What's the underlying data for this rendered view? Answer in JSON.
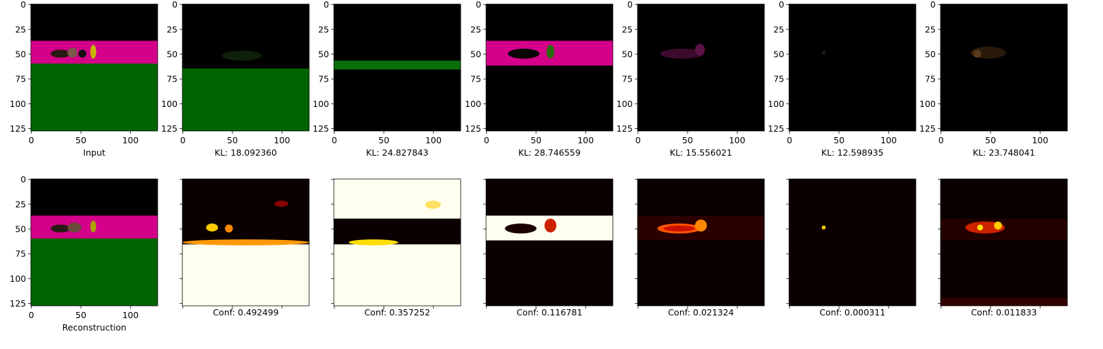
{
  "figure": {
    "panels": [
      {
        "row": "top",
        "kind": "rgb",
        "caption": "Input",
        "layers": [
          {
            "color": "#000000",
            "y0": 0,
            "y1": 128
          },
          {
            "color": "#d4008a",
            "y0": 37,
            "y1": 63
          },
          {
            "color": "#006400",
            "y0": 60,
            "y1": 128
          }
        ],
        "blobs": [
          {
            "cx": 30,
            "cy": 50,
            "rx": 10,
            "ry": 4,
            "color": "#2a1a14"
          },
          {
            "cx": 42,
            "cy": 49,
            "rx": 5,
            "ry": 5,
            "color": "#7a5a4a"
          },
          {
            "cx": 52,
            "cy": 50,
            "rx": 4,
            "ry": 4,
            "color": "#111111"
          },
          {
            "cx": 63,
            "cy": 48,
            "rx": 3,
            "ry": 7,
            "color": "#c8b400"
          }
        ]
      },
      {
        "row": "top",
        "kind": "rgb",
        "caption": "KL: 18.092360",
        "layers": [
          {
            "color": "#000000",
            "y0": 0,
            "y1": 128
          },
          {
            "color": "#006400",
            "y0": 65,
            "y1": 128
          }
        ],
        "blobs": [
          {
            "cx": 60,
            "cy": 52,
            "rx": 20,
            "ry": 5,
            "color": "#0f200a"
          }
        ]
      },
      {
        "row": "top",
        "kind": "rgb",
        "caption": "KL: 24.827843",
        "layers": [
          {
            "color": "#000000",
            "y0": 0,
            "y1": 128
          },
          {
            "color": "#0a6e0a",
            "y0": 57,
            "y1": 66
          }
        ],
        "blobs": []
      },
      {
        "row": "top",
        "kind": "rgb",
        "caption": "KL: 28.746559",
        "layers": [
          {
            "color": "#000000",
            "y0": 0,
            "y1": 128
          },
          {
            "color": "#d4008a",
            "y0": 37,
            "y1": 62
          }
        ],
        "blobs": [
          {
            "cx": 38,
            "cy": 50,
            "rx": 16,
            "ry": 5,
            "color": "#050505"
          },
          {
            "cx": 65,
            "cy": 48,
            "rx": 4,
            "ry": 7,
            "color": "#2b6a10"
          }
        ]
      },
      {
        "row": "top",
        "kind": "rgb",
        "caption": "KL: 15.556021",
        "layers": [
          {
            "color": "#000000",
            "y0": 0,
            "y1": 128
          }
        ],
        "blobs": [
          {
            "cx": 45,
            "cy": 50,
            "rx": 22,
            "ry": 5,
            "color": "#3b0a2d"
          },
          {
            "cx": 63,
            "cy": 46,
            "rx": 5,
            "ry": 6,
            "color": "#5a1247"
          }
        ]
      },
      {
        "row": "top",
        "kind": "rgb",
        "caption": "KL: 12.598935",
        "layers": [
          {
            "color": "#000000",
            "y0": 0,
            "y1": 128
          }
        ],
        "blobs": [
          {
            "cx": 35,
            "cy": 49,
            "rx": 2,
            "ry": 2,
            "color": "#221818"
          }
        ]
      },
      {
        "row": "top",
        "kind": "rgb",
        "caption": "KL: 23.748041",
        "layers": [
          {
            "color": "#000000",
            "y0": 0,
            "y1": 128
          }
        ],
        "blobs": [
          {
            "cx": 48,
            "cy": 49,
            "rx": 18,
            "ry": 6,
            "color": "#2a1a0a"
          },
          {
            "cx": 37,
            "cy": 50,
            "rx": 4,
            "ry": 4,
            "color": "#5a3a1a"
          }
        ]
      },
      {
        "row": "bottom",
        "kind": "rgb",
        "caption": "Reconstruction",
        "layers": [
          {
            "color": "#000000",
            "y0": 0,
            "y1": 128
          },
          {
            "color": "#d4008a",
            "y0": 37,
            "y1": 62
          },
          {
            "color": "#006400",
            "y0": 60,
            "y1": 128
          }
        ],
        "blobs": [
          {
            "cx": 30,
            "cy": 50,
            "rx": 10,
            "ry": 4,
            "color": "#2a1a14"
          },
          {
            "cx": 44,
            "cy": 49,
            "rx": 7,
            "ry": 5,
            "color": "#6a4a3a"
          },
          {
            "cx": 63,
            "cy": 48,
            "rx": 3,
            "ry": 6,
            "color": "#b0a000"
          }
        ]
      },
      {
        "row": "bottom",
        "kind": "heat",
        "caption": "Conf: 0.492499",
        "layers": [
          {
            "color": "#0b0000",
            "y0": 0,
            "y1": 128
          },
          {
            "color": "#fffff0",
            "y0": 66,
            "y1": 128
          }
        ],
        "blobs": [
          {
            "cx": 30,
            "cy": 49,
            "rx": 6,
            "ry": 4,
            "color": "#ffcc00"
          },
          {
            "cx": 47,
            "cy": 50,
            "rx": 4,
            "ry": 4,
            "color": "#ff8800"
          },
          {
            "cx": 100,
            "cy": 25,
            "rx": 7,
            "ry": 3,
            "color": "#8a0000"
          },
          {
            "cx": 64,
            "cy": 64,
            "rx": 64,
            "ry": 3,
            "color": "#ff9900"
          }
        ]
      },
      {
        "row": "bottom",
        "kind": "heat",
        "caption": "Conf: 0.357252",
        "layers": [
          {
            "color": "#0b0000",
            "y0": 0,
            "y1": 128
          },
          {
            "color": "#fffff0",
            "y0": 0,
            "y1": 40
          },
          {
            "color": "#fffff0",
            "y0": 66,
            "y1": 128
          }
        ],
        "blobs": [
          {
            "cx": 100,
            "cy": 26,
            "rx": 8,
            "ry": 4,
            "color": "#ffe060"
          },
          {
            "cx": 40,
            "cy": 64,
            "rx": 25,
            "ry": 3,
            "color": "#ffdd00"
          }
        ]
      },
      {
        "row": "bottom",
        "kind": "heat",
        "caption": "Conf: 0.116781",
        "layers": [
          {
            "color": "#0b0000",
            "y0": 0,
            "y1": 128
          },
          {
            "color": "#fffff0",
            "y0": 37,
            "y1": 62
          }
        ],
        "blobs": [
          {
            "cx": 35,
            "cy": 50,
            "rx": 16,
            "ry": 5,
            "color": "#1a0000"
          },
          {
            "cx": 65,
            "cy": 47,
            "rx": 6,
            "ry": 7,
            "color": "#cc2200"
          }
        ]
      },
      {
        "row": "bottom",
        "kind": "heat",
        "caption": "Conf: 0.021324",
        "layers": [
          {
            "color": "#0b0000",
            "y0": 0,
            "y1": 128
          },
          {
            "color": "#2a0000",
            "y0": 37,
            "y1": 62
          }
        ],
        "blobs": [
          {
            "cx": 42,
            "cy": 50,
            "rx": 22,
            "ry": 5,
            "color": "#ff5500"
          },
          {
            "cx": 64,
            "cy": 47,
            "rx": 6,
            "ry": 6,
            "color": "#ff8800"
          },
          {
            "cx": 42,
            "cy": 50,
            "rx": 16,
            "ry": 3,
            "color": "#cc1100"
          }
        ]
      },
      {
        "row": "bottom",
        "kind": "heat",
        "caption": "Conf: 0.000311",
        "layers": [
          {
            "color": "#0b0000",
            "y0": 0,
            "y1": 128
          }
        ],
        "blobs": [
          {
            "cx": 35,
            "cy": 49,
            "rx": 2,
            "ry": 2,
            "color": "#ffcc00"
          }
        ]
      },
      {
        "row": "bottom",
        "kind": "heat",
        "caption": "Conf: 0.011833",
        "layers": [
          {
            "color": "#0b0000",
            "y0": 0,
            "y1": 128
          },
          {
            "color": "#220000",
            "y0": 40,
            "y1": 62
          },
          {
            "color": "#330000",
            "y0": 120,
            "y1": 128
          }
        ],
        "blobs": [
          {
            "cx": 45,
            "cy": 49,
            "rx": 20,
            "ry": 6,
            "color": "#cc2200"
          },
          {
            "cx": 40,
            "cy": 49,
            "rx": 3,
            "ry": 3,
            "color": "#ffdd00"
          },
          {
            "cx": 58,
            "cy": 47,
            "rx": 4,
            "ry": 4,
            "color": "#ffcc00"
          }
        ]
      }
    ],
    "image_size": 128,
    "x_ticks": [
      "0",
      "50",
      "100"
    ],
    "x_tick_values": [
      0,
      50,
      100
    ],
    "y_ticks": [
      "0",
      "25",
      "50",
      "75",
      "100",
      "125"
    ],
    "y_tick_values": [
      0,
      25,
      50,
      75,
      100,
      125
    ]
  }
}
